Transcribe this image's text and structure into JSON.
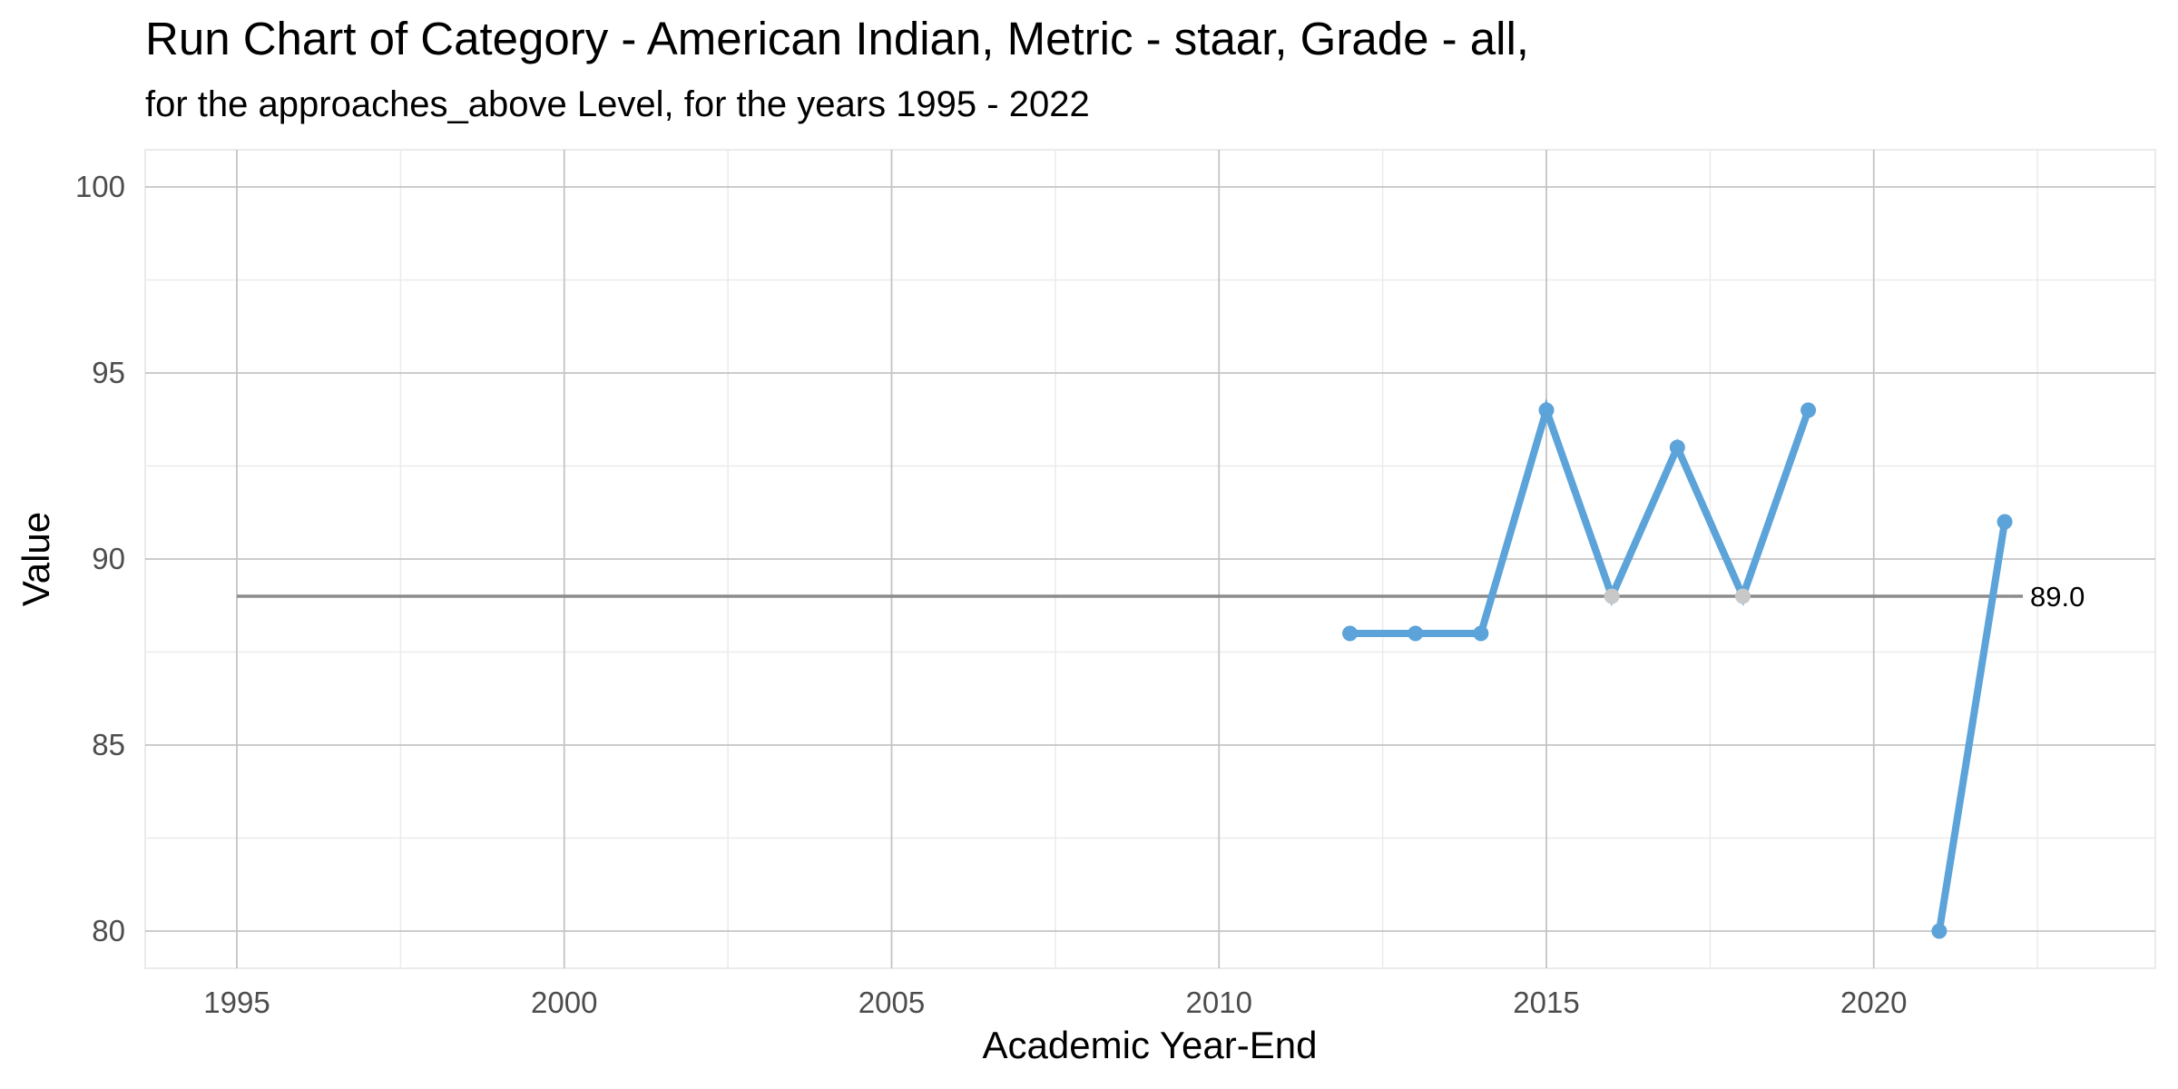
{
  "chart_data": {
    "type": "line",
    "title": "Run Chart of Category - American Indian, Metric - staar, Grade - all,",
    "subtitle": "for the approaches_above Level, for the years 1995 - 2022",
    "xlabel": "Academic Year-End",
    "ylabel": "Value",
    "xlim": [
      1993.6,
      2024.3
    ],
    "ylim": [
      79,
      101
    ],
    "x_ticks": [
      "1995",
      "2000",
      "2005",
      "2010",
      "2015",
      "2020"
    ],
    "y_ticks": [
      "80",
      "85",
      "90",
      "95",
      "100"
    ],
    "grid": true,
    "series": [
      {
        "color": "#5BA3D9",
        "segments": [
          [
            {
              "x": 2012,
              "y": 88
            },
            {
              "x": 2013,
              "y": 88
            },
            {
              "x": 2014,
              "y": 88
            },
            {
              "x": 2015,
              "y": 94
            },
            {
              "x": 2016,
              "y": 89
            },
            {
              "x": 2017,
              "y": 93
            },
            {
              "x": 2018,
              "y": 89
            },
            {
              "x": 2019,
              "y": 94
            }
          ],
          [
            {
              "x": 2021,
              "y": 80
            },
            {
              "x": 2022,
              "y": 91
            }
          ]
        ]
      }
    ],
    "on_median_point_color": "#C8C8C8",
    "median_line": {
      "value": 89,
      "x_start": 1995,
      "x_end": 2022,
      "label": "89.0",
      "color": "#8C8C8C"
    }
  }
}
